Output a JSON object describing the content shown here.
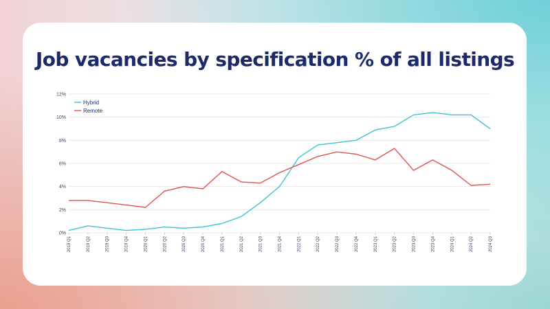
{
  "title": "Job vacancies by specification % of all listings",
  "colors": {
    "hybrid": "#3cc3cf",
    "remote": "#e0514f",
    "title": "#1c2a6b",
    "grid": "#e6e8ee"
  },
  "chart_data": {
    "type": "line",
    "title": "Job vacancies by specification % of all listings",
    "xlabel": "",
    "ylabel": "",
    "ylim": [
      0,
      12
    ],
    "yticks": [
      0,
      2,
      4,
      6,
      8,
      10,
      12
    ],
    "ytick_labels": [
      "0%",
      "2%",
      "4%",
      "6%",
      "8%",
      "10%",
      "12%"
    ],
    "grid": true,
    "legend_position": "top-left",
    "categories": [
      "2019 Q1",
      "2019 Q2",
      "2019 Q3",
      "2019 Q4",
      "2020 Q1",
      "2020 Q2",
      "2020 Q3",
      "2020 Q4",
      "2021 Q1",
      "2021 Q2",
      "2021 Q3",
      "2021 Q4",
      "2022 Q1",
      "2022 Q2",
      "2022 Q3",
      "2022 Q4",
      "2023 Q1",
      "2023 Q2",
      "2023 Q3",
      "2023 Q4",
      "2024 Q1",
      "2024 Q2",
      "2024 Q3"
    ],
    "series": [
      {
        "name": "Hybrid",
        "color": "#3cc3cf",
        "values": [
          0.2,
          0.6,
          0.4,
          0.2,
          0.3,
          0.5,
          0.4,
          0.5,
          0.8,
          1.4,
          2.6,
          4.0,
          6.5,
          7.6,
          7.8,
          8.0,
          8.9,
          9.2,
          10.2,
          10.4,
          10.2,
          10.2,
          9.0
        ]
      },
      {
        "name": "Remote",
        "color": "#e0514f",
        "values": [
          2.8,
          2.8,
          2.6,
          2.4,
          2.2,
          3.6,
          4.0,
          3.8,
          5.3,
          4.4,
          4.3,
          5.2,
          5.9,
          6.6,
          7.0,
          6.8,
          6.3,
          7.3,
          5.4,
          6.3,
          5.4,
          4.1,
          4.2
        ]
      }
    ]
  }
}
